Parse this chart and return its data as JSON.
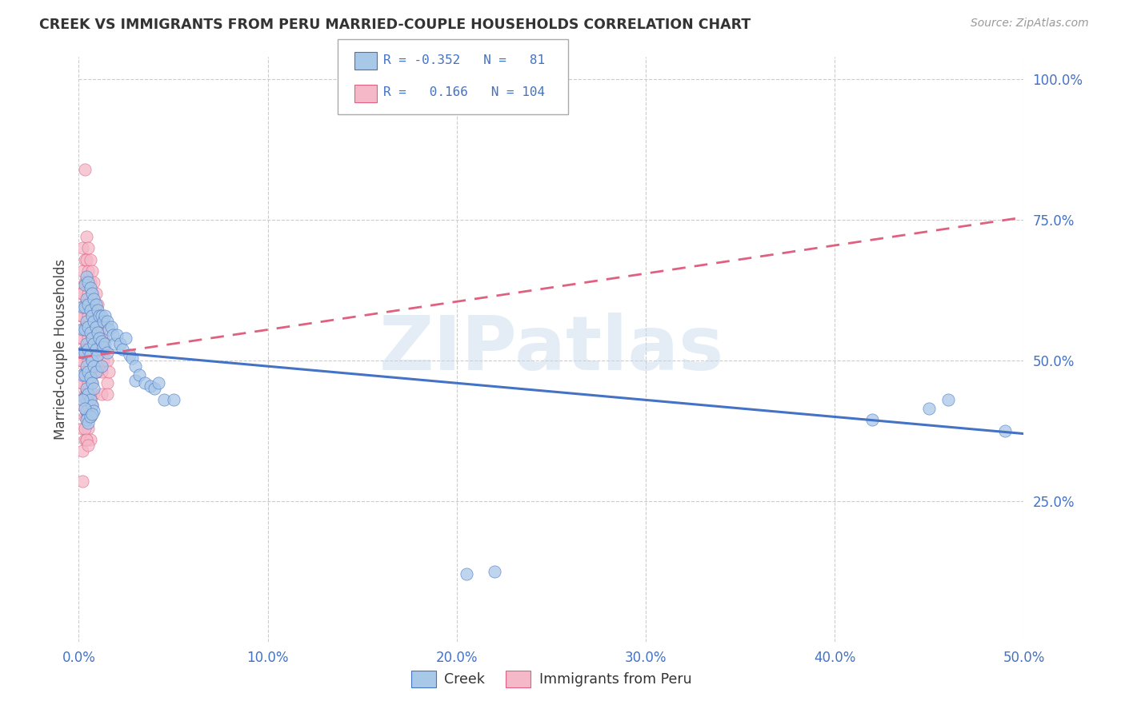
{
  "title": "CREEK VS IMMIGRANTS FROM PERU MARRIED-COUPLE HOUSEHOLDS CORRELATION CHART",
  "source": "Source: ZipAtlas.com",
  "ylabel": "Married-couple Households",
  "xlim": [
    0.0,
    0.5
  ],
  "ylim": [
    0.0,
    1.04
  ],
  "plot_ylim": [
    0.0,
    1.04
  ],
  "xticks": [
    0.0,
    0.1,
    0.2,
    0.3,
    0.4,
    0.5
  ],
  "yticks": [
    0.25,
    0.5,
    0.75,
    1.0
  ],
  "ytick_labels": [
    "25.0%",
    "50.0%",
    "75.0%",
    "100.0%"
  ],
  "xtick_labels": [
    "0.0%",
    "10.0%",
    "20.0%",
    "30.0%",
    "40.0%",
    "50.0%"
  ],
  "creek_color": "#a8c8e8",
  "peru_color": "#f4b8c8",
  "creek_edge_color": "#4472C4",
  "peru_edge_color": "#e06080",
  "creek_line_color": "#4472C4",
  "peru_line_color": "#e06080",
  "background_color": "#ffffff",
  "grid_color": "#cccccc",
  "watermark_text": "ZIPatlas",
  "creek_line": [
    0.0,
    0.52,
    0.5,
    0.37
  ],
  "peru_line": [
    0.0,
    0.505,
    0.5,
    0.755
  ],
  "creek_scatter": [
    [
      0.002,
      0.595
    ],
    [
      0.002,
      0.555
    ],
    [
      0.002,
      0.515
    ],
    [
      0.002,
      0.475
    ],
    [
      0.003,
      0.635
    ],
    [
      0.003,
      0.595
    ],
    [
      0.003,
      0.555
    ],
    [
      0.003,
      0.515
    ],
    [
      0.003,
      0.475
    ],
    [
      0.003,
      0.435
    ],
    [
      0.004,
      0.65
    ],
    [
      0.004,
      0.61
    ],
    [
      0.004,
      0.57
    ],
    [
      0.004,
      0.53
    ],
    [
      0.004,
      0.49
    ],
    [
      0.004,
      0.45
    ],
    [
      0.004,
      0.41
    ],
    [
      0.005,
      0.64
    ],
    [
      0.005,
      0.6
    ],
    [
      0.005,
      0.56
    ],
    [
      0.005,
      0.52
    ],
    [
      0.005,
      0.48
    ],
    [
      0.005,
      0.44
    ],
    [
      0.005,
      0.4
    ],
    [
      0.006,
      0.63
    ],
    [
      0.006,
      0.59
    ],
    [
      0.006,
      0.55
    ],
    [
      0.006,
      0.51
    ],
    [
      0.006,
      0.47
    ],
    [
      0.006,
      0.43
    ],
    [
      0.007,
      0.62
    ],
    [
      0.007,
      0.58
    ],
    [
      0.007,
      0.54
    ],
    [
      0.007,
      0.5
    ],
    [
      0.007,
      0.46
    ],
    [
      0.007,
      0.42
    ],
    [
      0.008,
      0.61
    ],
    [
      0.008,
      0.57
    ],
    [
      0.008,
      0.53
    ],
    [
      0.008,
      0.49
    ],
    [
      0.008,
      0.45
    ],
    [
      0.008,
      0.41
    ],
    [
      0.009,
      0.6
    ],
    [
      0.009,
      0.56
    ],
    [
      0.009,
      0.52
    ],
    [
      0.009,
      0.48
    ],
    [
      0.01,
      0.59
    ],
    [
      0.01,
      0.55
    ],
    [
      0.01,
      0.51
    ],
    [
      0.011,
      0.58
    ],
    [
      0.011,
      0.54
    ],
    [
      0.012,
      0.58
    ],
    [
      0.012,
      0.535
    ],
    [
      0.012,
      0.49
    ],
    [
      0.013,
      0.57
    ],
    [
      0.013,
      0.525
    ],
    [
      0.014,
      0.58
    ],
    [
      0.014,
      0.53
    ],
    [
      0.015,
      0.57
    ],
    [
      0.015,
      0.515
    ],
    [
      0.016,
      0.555
    ],
    [
      0.017,
      0.56
    ],
    [
      0.018,
      0.545
    ],
    [
      0.019,
      0.53
    ],
    [
      0.02,
      0.545
    ],
    [
      0.022,
      0.53
    ],
    [
      0.023,
      0.52
    ],
    [
      0.025,
      0.54
    ],
    [
      0.027,
      0.51
    ],
    [
      0.028,
      0.505
    ],
    [
      0.03,
      0.49
    ],
    [
      0.03,
      0.465
    ],
    [
      0.032,
      0.475
    ],
    [
      0.035,
      0.46
    ],
    [
      0.038,
      0.455
    ],
    [
      0.04,
      0.45
    ],
    [
      0.042,
      0.46
    ],
    [
      0.045,
      0.43
    ],
    [
      0.05,
      0.43
    ],
    [
      0.002,
      0.43
    ],
    [
      0.003,
      0.415
    ],
    [
      0.004,
      0.395
    ],
    [
      0.005,
      0.39
    ],
    [
      0.006,
      0.4
    ],
    [
      0.007,
      0.405
    ],
    [
      0.205,
      0.12
    ],
    [
      0.22,
      0.125
    ],
    [
      0.42,
      0.395
    ],
    [
      0.45,
      0.415
    ],
    [
      0.46,
      0.43
    ],
    [
      0.49,
      0.375
    ]
  ],
  "peru_scatter": [
    [
      0.001,
      0.62
    ],
    [
      0.001,
      0.58
    ],
    [
      0.001,
      0.54
    ],
    [
      0.001,
      0.5
    ],
    [
      0.001,
      0.46
    ],
    [
      0.002,
      0.7
    ],
    [
      0.002,
      0.66
    ],
    [
      0.002,
      0.62
    ],
    [
      0.002,
      0.58
    ],
    [
      0.002,
      0.54
    ],
    [
      0.002,
      0.5
    ],
    [
      0.002,
      0.46
    ],
    [
      0.002,
      0.42
    ],
    [
      0.002,
      0.38
    ],
    [
      0.002,
      0.34
    ],
    [
      0.003,
      0.68
    ],
    [
      0.003,
      0.64
    ],
    [
      0.003,
      0.6
    ],
    [
      0.003,
      0.56
    ],
    [
      0.003,
      0.52
    ],
    [
      0.003,
      0.48
    ],
    [
      0.003,
      0.44
    ],
    [
      0.003,
      0.4
    ],
    [
      0.003,
      0.36
    ],
    [
      0.003,
      0.84
    ],
    [
      0.004,
      0.72
    ],
    [
      0.004,
      0.68
    ],
    [
      0.004,
      0.64
    ],
    [
      0.004,
      0.6
    ],
    [
      0.004,
      0.56
    ],
    [
      0.004,
      0.52
    ],
    [
      0.004,
      0.48
    ],
    [
      0.004,
      0.44
    ],
    [
      0.004,
      0.4
    ],
    [
      0.004,
      0.36
    ],
    [
      0.004,
      0.44
    ],
    [
      0.005,
      0.7
    ],
    [
      0.005,
      0.66
    ],
    [
      0.005,
      0.62
    ],
    [
      0.005,
      0.58
    ],
    [
      0.005,
      0.54
    ],
    [
      0.005,
      0.5
    ],
    [
      0.005,
      0.46
    ],
    [
      0.005,
      0.42
    ],
    [
      0.005,
      0.38
    ],
    [
      0.006,
      0.68
    ],
    [
      0.006,
      0.64
    ],
    [
      0.006,
      0.6
    ],
    [
      0.006,
      0.56
    ],
    [
      0.006,
      0.52
    ],
    [
      0.006,
      0.48
    ],
    [
      0.006,
      0.44
    ],
    [
      0.006,
      0.4
    ],
    [
      0.006,
      0.36
    ],
    [
      0.007,
      0.66
    ],
    [
      0.007,
      0.62
    ],
    [
      0.007,
      0.58
    ],
    [
      0.007,
      0.54
    ],
    [
      0.007,
      0.5
    ],
    [
      0.007,
      0.46
    ],
    [
      0.007,
      0.42
    ],
    [
      0.008,
      0.64
    ],
    [
      0.008,
      0.6
    ],
    [
      0.008,
      0.56
    ],
    [
      0.008,
      0.52
    ],
    [
      0.008,
      0.48
    ],
    [
      0.008,
      0.44
    ],
    [
      0.009,
      0.62
    ],
    [
      0.009,
      0.58
    ],
    [
      0.009,
      0.54
    ],
    [
      0.009,
      0.5
    ],
    [
      0.01,
      0.6
    ],
    [
      0.01,
      0.56
    ],
    [
      0.01,
      0.52
    ],
    [
      0.01,
      0.48
    ],
    [
      0.011,
      0.58
    ],
    [
      0.011,
      0.54
    ],
    [
      0.012,
      0.56
    ],
    [
      0.012,
      0.52
    ],
    [
      0.012,
      0.48
    ],
    [
      0.012,
      0.44
    ],
    [
      0.013,
      0.54
    ],
    [
      0.013,
      0.5
    ],
    [
      0.014,
      0.52
    ],
    [
      0.015,
      0.5
    ],
    [
      0.015,
      0.46
    ],
    [
      0.016,
      0.48
    ],
    [
      0.003,
      0.38
    ],
    [
      0.004,
      0.36
    ],
    [
      0.005,
      0.35
    ],
    [
      0.002,
      0.285
    ],
    [
      0.004,
      0.44
    ],
    [
      0.015,
      0.44
    ]
  ]
}
